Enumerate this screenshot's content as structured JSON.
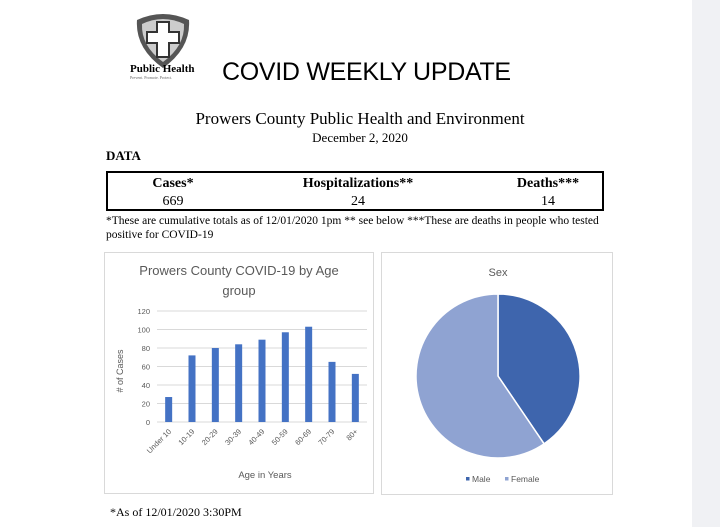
{
  "header": {
    "logo_text": "Public Health",
    "logo_tagline": "Prevent. Promote. Protect.",
    "title": "COVID WEEKLY UPDATE",
    "org": "Prowers County Public Health and Environment",
    "date": "December 2, 2020",
    "section": "DATA"
  },
  "summary": {
    "cases_label": "Cases*",
    "cases": "669",
    "hosp_label": "Hospitalizations**",
    "hosp": "24",
    "deaths_label": "Deaths***",
    "deaths": "14"
  },
  "note": "*These are cumulative totals as of 12/01/2020 1pm ** see below ***These are deaths in people who tested positive for COVID-19",
  "footer": "*As of 12/01/2020 3:30PM",
  "chart_data": [
    {
      "type": "bar",
      "title": "Prowers County COVID-19 by Age group",
      "xlabel": "Age in Years",
      "ylabel": "# of Cases",
      "ylim": [
        0,
        120
      ],
      "yticks": [
        0,
        20,
        40,
        60,
        80,
        100,
        120
      ],
      "grid": true,
      "categories": [
        "Under 10",
        "10-19",
        "20-29",
        "30-39",
        "40-49",
        "50-59",
        "60-69",
        "70-79",
        "80+"
      ],
      "values": [
        27,
        72,
        80,
        84,
        89,
        97,
        103,
        65,
        52
      ],
      "color": "#4472c4"
    },
    {
      "type": "pie",
      "title": "Sex",
      "legend": "bottom",
      "categories": [
        "Male",
        "Female"
      ],
      "values": [
        40.5,
        59.5
      ],
      "colors": [
        "#3e65ad",
        "#8fa3d2"
      ]
    }
  ]
}
